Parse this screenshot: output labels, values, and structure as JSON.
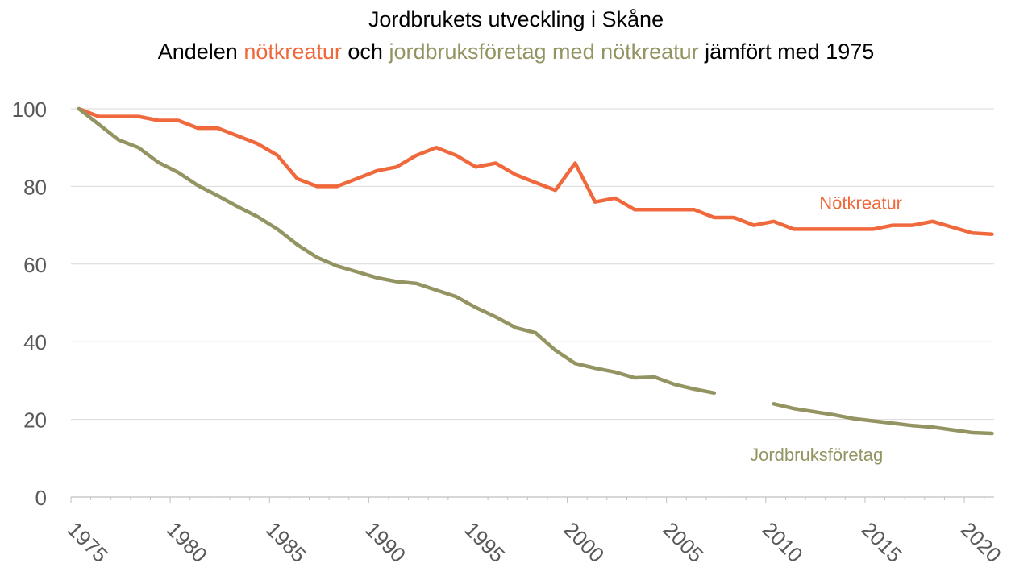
{
  "chart_data": {
    "type": "line",
    "title": "Jordbrukets utveckling i Skåne",
    "subtitle": {
      "prefix": "Andelen ",
      "series1_word": "nötkreatur",
      "middle": " och ",
      "series2_word": "jordbruksföretag med nötkreatur",
      "suffix": " jämfört med 1975"
    },
    "xlabel": "",
    "ylabel": "",
    "xlim": [
      1975,
      2021.5
    ],
    "ylim": [
      0,
      100
    ],
    "x_ticks": [
      "1975",
      "1980",
      "1985",
      "1990",
      "1995",
      "2000",
      "2005",
      "2010",
      "2015",
      "2020"
    ],
    "y_ticks": [
      "0",
      "20",
      "40",
      "60",
      "80",
      "100"
    ],
    "grid": true,
    "series": [
      {
        "name": "Nötkreatur",
        "color": "#F0693C",
        "points": [
          [
            1975.4,
            100
          ],
          [
            1976.4,
            98
          ],
          [
            1977.4,
            98
          ],
          [
            1978.4,
            98
          ],
          [
            1979.4,
            97
          ],
          [
            1980.4,
            97
          ],
          [
            1981.4,
            95
          ],
          [
            1982.4,
            95
          ],
          [
            1983.4,
            93
          ],
          [
            1984.4,
            91
          ],
          [
            1985.4,
            88
          ],
          [
            1986.4,
            82
          ],
          [
            1987.4,
            80
          ],
          [
            1988.4,
            80
          ],
          [
            1989.4,
            82
          ],
          [
            1990.4,
            84
          ],
          [
            1991.4,
            85
          ],
          [
            1992.4,
            88
          ],
          [
            1993.4,
            90
          ],
          [
            1994.4,
            88
          ],
          [
            1995.4,
            85
          ],
          [
            1996.4,
            86
          ],
          [
            1997.4,
            83
          ],
          [
            1998.4,
            81
          ],
          [
            1999.4,
            79
          ],
          [
            2000.4,
            86
          ],
          [
            2001.4,
            76
          ],
          [
            2002.4,
            77
          ],
          [
            2003.4,
            74
          ],
          [
            2004.4,
            74
          ],
          [
            2005.4,
            74
          ],
          [
            2006.4,
            74
          ],
          [
            2007.4,
            72
          ],
          [
            2008.4,
            72
          ],
          [
            2009.4,
            70
          ],
          [
            2010.4,
            71
          ],
          [
            2011.4,
            69
          ],
          [
            2012.4,
            69
          ],
          [
            2013.4,
            69
          ],
          [
            2014.4,
            69
          ],
          [
            2015.4,
            69
          ],
          [
            2016.4,
            70
          ],
          [
            2017.4,
            70
          ],
          [
            2018.4,
            71
          ],
          [
            2019.4,
            69.5
          ],
          [
            2020.4,
            68
          ],
          [
            2021.4,
            67.7
          ]
        ]
      },
      {
        "name": "Jordbruksföretag",
        "color": "#939462",
        "segments": [
          [
            [
              1975.4,
              100
            ],
            [
              1976.4,
              96
            ],
            [
              1977.4,
              92
            ],
            [
              1978.4,
              90
            ],
            [
              1979.4,
              86.2
            ],
            [
              1980.4,
              83.6
            ],
            [
              1981.4,
              80.2
            ],
            [
              1982.4,
              77.6
            ],
            [
              1983.4,
              74.8
            ],
            [
              1984.4,
              72.2
            ],
            [
              1985.4,
              69
            ],
            [
              1986.4,
              65
            ],
            [
              1987.4,
              61.7
            ],
            [
              1988.4,
              59.5
            ],
            [
              1989.4,
              58
            ],
            [
              1990.4,
              56.5
            ],
            [
              1991.4,
              55.5
            ],
            [
              1992.4,
              55
            ],
            [
              1993.4,
              53.3
            ],
            [
              1994.4,
              51.6
            ],
            [
              1995.4,
              48.8
            ],
            [
              1996.4,
              46.4
            ],
            [
              1997.4,
              43.6
            ],
            [
              1998.4,
              42.3
            ],
            [
              1999.4,
              37.8
            ],
            [
              2000.4,
              34.4
            ],
            [
              2001.4,
              33.2
            ],
            [
              2002.4,
              32.2
            ],
            [
              2003.4,
              30.7
            ],
            [
              2004.4,
              30.9
            ],
            [
              2005.4,
              29
            ],
            [
              2006.4,
              27.8
            ],
            [
              2007.4,
              26.8
            ]
          ],
          [
            [
              2010.4,
              24
            ],
            [
              2011.4,
              22.8
            ],
            [
              2012.4,
              22
            ],
            [
              2013.4,
              21.2
            ],
            [
              2014.4,
              20.2
            ],
            [
              2015.4,
              19.6
            ],
            [
              2016.4,
              19
            ],
            [
              2017.4,
              18.4
            ],
            [
              2018.4,
              18
            ],
            [
              2019.4,
              17.3
            ],
            [
              2020.4,
              16.6
            ],
            [
              2021.4,
              16.4
            ]
          ]
        ]
      }
    ],
    "annotations": [
      {
        "text": "Nötkreatur",
        "x": 2012.7,
        "y": 74.2,
        "series": 0
      },
      {
        "text": "Jordbruksföretag",
        "x": 2009.2,
        "y": 9.3,
        "series": 1
      }
    ]
  }
}
